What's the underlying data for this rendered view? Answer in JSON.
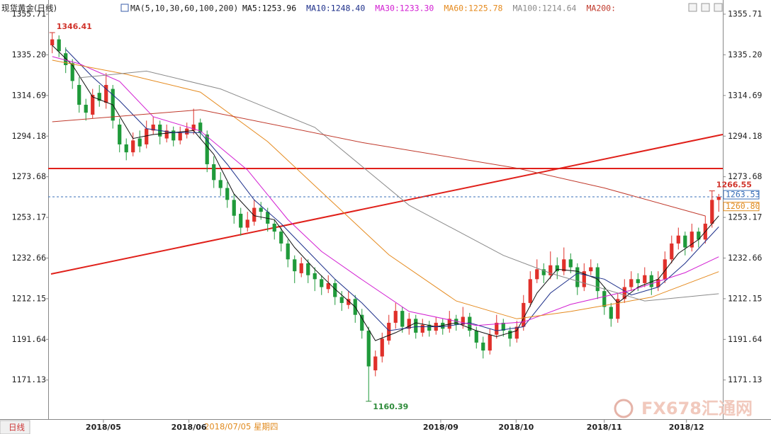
{
  "chart_data": {
    "type": "candlestick",
    "title": "现货黄金(日线)",
    "indicator": "MA(5,10,30,60,100,200)",
    "up_color": "#e0302a",
    "down_color": "#1f9a3a",
    "ylim": [
      1152.1,
      1361.07
    ],
    "yticks": [
      1355.71,
      {
        "value": 1335.2,
        "label": "1335.20"
      },
      1314.69,
      1294.18,
      1273.68,
      1253.17,
      1232.66,
      1212.15,
      1191.64,
      1171.13
    ],
    "xlim": [
      -0.6,
      99.6
    ],
    "xticks": [
      {
        "value": 7.6,
        "label": "2018/05"
      },
      {
        "value": 20.3,
        "label": "2018/06"
      },
      {
        "value": 57.7,
        "label": "2018/09"
      },
      {
        "value": 68.9,
        "label": "2018/10"
      },
      {
        "value": 82,
        "label": "2018/11"
      },
      {
        "value": 94.2,
        "label": "2018/12"
      }
    ],
    "candles": [
      [
        1340,
        1346.41,
        1336,
        1343
      ],
      [
        1343,
        1345,
        1334,
        1337
      ],
      [
        1336,
        1339,
        1326,
        1330
      ],
      [
        1331,
        1333,
        1318,
        1322
      ],
      [
        1320,
        1324,
        1306,
        1310
      ],
      [
        1310,
        1313,
        1302,
        1306
      ],
      [
        1305,
        1318,
        1303,
        1315
      ],
      [
        1316,
        1320,
        1309,
        1312
      ],
      [
        1311,
        1326,
        1308,
        1320
      ],
      [
        1318,
        1320,
        1298,
        1302
      ],
      [
        1300,
        1303,
        1286,
        1290
      ],
      [
        1290,
        1293,
        1282,
        1286
      ],
      [
        1286,
        1296,
        1284,
        1292
      ],
      [
        1293,
        1297,
        1286,
        1289
      ],
      [
        1290,
        1302,
        1288,
        1298
      ],
      [
        1297,
        1304,
        1295,
        1300
      ],
      [
        1300,
        1302,
        1290,
        1294
      ],
      [
        1293,
        1300,
        1291,
        1297
      ],
      [
        1297,
        1299,
        1289,
        1292
      ],
      [
        1292,
        1299,
        1290,
        1296
      ],
      [
        1295,
        1301,
        1293,
        1298
      ],
      [
        1297,
        1308,
        1295,
        1300
      ],
      [
        1301,
        1303,
        1293,
        1296
      ],
      [
        1295,
        1297,
        1276,
        1280
      ],
      [
        1280,
        1284,
        1268,
        1272
      ],
      [
        1272,
        1276,
        1264,
        1268
      ],
      [
        1268,
        1271,
        1258,
        1262
      ],
      [
        1262,
        1265,
        1250,
        1254
      ],
      [
        1255,
        1258,
        1244,
        1248
      ],
      [
        1248,
        1256,
        1246,
        1252
      ],
      [
        1251,
        1262,
        1249,
        1258
      ],
      [
        1258,
        1261,
        1252,
        1256
      ],
      [
        1256,
        1258,
        1246,
        1250
      ],
      [
        1250,
        1252,
        1242,
        1246
      ],
      [
        1246,
        1248,
        1236,
        1240
      ],
      [
        1240,
        1242,
        1228,
        1232
      ],
      [
        1232,
        1234,
        1220,
        1226
      ],
      [
        1225,
        1233,
        1223,
        1230
      ],
      [
        1230,
        1232,
        1220,
        1224
      ],
      [
        1225,
        1228,
        1216,
        1222
      ],
      [
        1222,
        1224,
        1214,
        1218
      ],
      [
        1217,
        1224,
        1215,
        1220
      ],
      [
        1220,
        1222,
        1209,
        1213
      ],
      [
        1213,
        1216,
        1206,
        1210
      ],
      [
        1209,
        1216,
        1207,
        1212
      ],
      [
        1212,
        1214,
        1200,
        1204
      ],
      [
        1204,
        1207,
        1192,
        1196
      ],
      [
        1196,
        1198,
        1160.39,
        1178
      ],
      [
        1176,
        1186,
        1173,
        1183
      ],
      [
        1183,
        1195,
        1180,
        1192
      ],
      [
        1191,
        1204,
        1189,
        1200
      ],
      [
        1200,
        1210,
        1197,
        1206
      ],
      [
        1206,
        1208,
        1195,
        1198
      ],
      [
        1197,
        1205,
        1194,
        1202
      ],
      [
        1202,
        1204,
        1192,
        1195
      ],
      [
        1195,
        1202,
        1193,
        1199
      ],
      [
        1199,
        1201,
        1193,
        1196
      ],
      [
        1196,
        1203,
        1194,
        1200
      ],
      [
        1200,
        1202,
        1194,
        1197
      ],
      [
        1197,
        1206,
        1195,
        1202
      ],
      [
        1202,
        1204,
        1196,
        1199
      ],
      [
        1199,
        1208,
        1197,
        1203
      ],
      [
        1203,
        1205,
        1193,
        1196
      ],
      [
        1196,
        1198,
        1187,
        1190
      ],
      [
        1190,
        1193,
        1182,
        1186
      ],
      [
        1186,
        1197,
        1184,
        1194
      ],
      [
        1194,
        1204,
        1192,
        1200
      ],
      [
        1200,
        1202,
        1193,
        1196
      ],
      [
        1196,
        1198,
        1188,
        1192
      ],
      [
        1192,
        1201,
        1190,
        1198
      ],
      [
        1198,
        1214,
        1196,
        1210
      ],
      [
        1210,
        1226,
        1208,
        1222
      ],
      [
        1222,
        1232,
        1220,
        1227
      ],
      [
        1227,
        1230,
        1220,
        1224
      ],
      [
        1224,
        1236,
        1222,
        1229
      ],
      [
        1229,
        1233,
        1222,
        1226
      ],
      [
        1226,
        1238,
        1224,
        1232
      ],
      [
        1232,
        1235,
        1225,
        1228
      ],
      [
        1228,
        1230,
        1214,
        1218
      ],
      [
        1218,
        1230,
        1216,
        1226
      ],
      [
        1226,
        1232,
        1224,
        1228
      ],
      [
        1228,
        1230,
        1212,
        1216
      ],
      [
        1216,
        1218,
        1204,
        1208
      ],
      [
        1208,
        1210,
        1198,
        1202
      ],
      [
        1202,
        1215,
        1200,
        1212
      ],
      [
        1212,
        1222,
        1210,
        1218
      ],
      [
        1218,
        1226,
        1216,
        1222
      ],
      [
        1222,
        1225,
        1216,
        1220
      ],
      [
        1220,
        1228,
        1218,
        1224
      ],
      [
        1224,
        1226,
        1214,
        1218
      ],
      [
        1218,
        1226,
        1216,
        1222
      ],
      [
        1222,
        1236,
        1220,
        1232
      ],
      [
        1232,
        1244,
        1230,
        1240
      ],
      [
        1240,
        1248,
        1237,
        1244
      ],
      [
        1244,
        1246,
        1234,
        1238
      ],
      [
        1238,
        1250,
        1236,
        1246
      ],
      [
        1246,
        1248,
        1238,
        1242
      ],
      [
        1242,
        1254,
        1240,
        1250
      ],
      [
        1250,
        1266.55,
        1248,
        1262
      ],
      [
        1262,
        1265,
        1256,
        1263.53
      ]
    ],
    "series": [
      {
        "name": "MA5",
        "label": "MA5:1253.96",
        "color": "#111111",
        "x": [
          0,
          3,
          6,
          9,
          12,
          15,
          18,
          21,
          24,
          27,
          30,
          33,
          36,
          39,
          42,
          45,
          48,
          51,
          54,
          57,
          60,
          63,
          66,
          69,
          72,
          75,
          78,
          81,
          84,
          87,
          90,
          93,
          96,
          99
        ],
        "values": [
          1340,
          1330,
          1314,
          1310,
          1293,
          1295,
          1296,
          1297,
          1285,
          1265,
          1254,
          1252,
          1238,
          1227,
          1217,
          1208,
          1191,
          1195,
          1200,
          1198,
          1200,
          1196,
          1193,
          1196,
          1215,
          1227,
          1226,
          1222,
          1210,
          1218,
          1222,
          1235,
          1242,
          1253.96
        ]
      },
      {
        "name": "MA10",
        "label": "MA10:1248.40",
        "color": "#1d2f8a",
        "x": [
          2,
          6,
          10,
          14,
          18,
          22,
          26,
          30,
          34,
          38,
          42,
          46,
          50,
          54,
          58,
          62,
          66,
          70,
          74,
          78,
          82,
          86,
          90,
          94,
          99
        ],
        "values": [
          1338,
          1324,
          1312,
          1298,
          1296,
          1296,
          1280,
          1262,
          1250,
          1236,
          1222,
          1210,
          1196,
          1198,
          1198,
          1200,
          1196,
          1198,
          1215,
          1225,
          1222,
          1214,
          1218,
          1230,
          1248.4
        ]
      },
      {
        "name": "MA30",
        "label": "MA30:1233.30",
        "color": "#d21ed2",
        "x": [
          0,
          4,
          10,
          15,
          22,
          29,
          35,
          40,
          46,
          53,
          63,
          70,
          77,
          86,
          94,
          99
        ],
        "values": [
          1334.3,
          1330.7,
          1321.8,
          1304,
          1296.8,
          1277.1,
          1252.1,
          1236,
          1221.8,
          1205.7,
          1198.6,
          1200.4,
          1209.3,
          1216.4,
          1225.3,
          1233.3
        ]
      },
      {
        "name": "MA60",
        "label": "MA60:1225.78",
        "color": "#e58a1e",
        "x": [
          0,
          11,
          22,
          32,
          40,
          50,
          60,
          69,
          77,
          89,
          99
        ],
        "values": [
          1332.5,
          1325.4,
          1316.4,
          1291.4,
          1266,
          1234.3,
          1211,
          1202,
          1205.7,
          1212.9,
          1225.78
        ]
      },
      {
        "name": "MA100",
        "label": "MA100:1214.64",
        "color": "#8a8a8a",
        "x": [
          4,
          14,
          25,
          39,
          53,
          67,
          74,
          88,
          99
        ],
        "values": [
          1323.6,
          1327,
          1318,
          1298.6,
          1259.3,
          1234,
          1225,
          1211,
          1214.64
        ]
      },
      {
        "name": "MA200",
        "label": "MA200:",
        "color": "#c0392b",
        "x": [
          0,
          22,
          46,
          69,
          82,
          97
        ],
        "values": [
          1301.4,
          1307.5,
          1291,
          1278,
          1268,
          1253.9
        ]
      }
    ],
    "resistance": 1277.86,
    "trendline": [
      1224.6,
      1295.0
    ],
    "last_price": 1263.53,
    "price_labels": [
      1263.53,
      {
        "value": 1260.8,
        "label": "1260.80"
      }
    ],
    "annotations": [
      {
        "index": 0,
        "value": 1346.41,
        "color": "#d0332b"
      },
      {
        "index": 98,
        "value": 1266.55,
        "color": "#d0332b"
      },
      {
        "index": 47,
        "value": 1160.39,
        "color": "#2e8b3a"
      }
    ],
    "crosshair_date": "2018/07/05 星期四",
    "period_tab": "日线",
    "watermark": [
      "FX678",
      "汇通网"
    ]
  }
}
